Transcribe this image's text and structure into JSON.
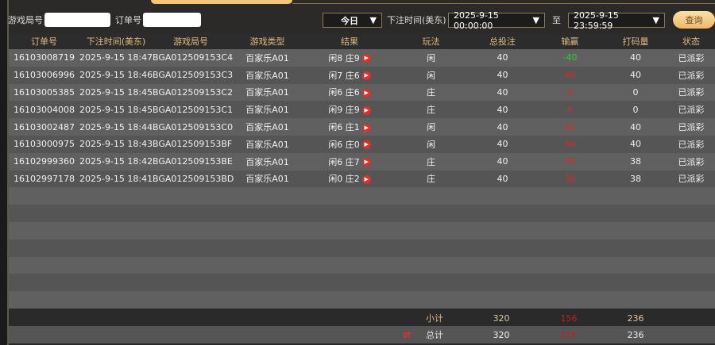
{
  "filters": {
    "round_label": "游戏局号",
    "round_value": "",
    "order_label": "订单号",
    "order_value": "",
    "range_select": "今日",
    "time_label": "下注时间(美东)",
    "start": "2025-9-15 00:00:00",
    "to_label": "至",
    "end": "2025-9-15 23:59:59",
    "query_button": "查询"
  },
  "columns": [
    "订单号",
    "下注时间(美东)",
    "游戏局号",
    "游戏类型",
    "结果",
    "玩法",
    "总投注",
    "输赢",
    "打码量",
    "状态"
  ],
  "rows": [
    {
      "order": "16103008719",
      "time": "2025-9-15 18:47",
      "round": "BGA012509153C4",
      "type": "百家乐A01",
      "result": "闲8 庄9",
      "play": "闲",
      "bet": "40",
      "win": "-40",
      "turnover": "40",
      "status": "已派彩"
    },
    {
      "order": "16103006996",
      "time": "2025-9-15 18:46",
      "round": "BGA012509153C3",
      "type": "百家乐A01",
      "result": "闲7 庄6",
      "play": "闲",
      "bet": "40",
      "win": "40",
      "turnover": "40",
      "status": "已派彩"
    },
    {
      "order": "16103005385",
      "time": "2025-9-15 18:45",
      "round": "BGA012509153C2",
      "type": "百家乐A01",
      "result": "闲6 庄6",
      "play": "庄",
      "bet": "40",
      "win": "0",
      "turnover": "0",
      "status": "已派彩"
    },
    {
      "order": "16103004008",
      "time": "2025-9-15 18:45",
      "round": "BGA012509153C1",
      "type": "百家乐A01",
      "result": "闲9 庄9",
      "play": "庄",
      "bet": "40",
      "win": "0",
      "turnover": "0",
      "status": "已派彩"
    },
    {
      "order": "16103002487",
      "time": "2025-9-15 18:44",
      "round": "BGA012509153C0",
      "type": "百家乐A01",
      "result": "闲6 庄1",
      "play": "闲",
      "bet": "40",
      "win": "40",
      "turnover": "40",
      "status": "已派彩"
    },
    {
      "order": "16103000975",
      "time": "2025-9-15 18:43",
      "round": "BGA012509153BF",
      "type": "百家乐A01",
      "result": "闲6 庄0",
      "play": "闲",
      "bet": "40",
      "win": "40",
      "turnover": "40",
      "status": "已派彩"
    },
    {
      "order": "16102999360",
      "time": "2025-9-15 18:42",
      "round": "BGA012509153BE",
      "type": "百家乐A01",
      "result": "闲6 庄7",
      "play": "庄",
      "bet": "40",
      "win": "38",
      "turnover": "38",
      "status": "已派彩"
    },
    {
      "order": "16102997178",
      "time": "2025-9-15 18:41",
      "round": "BGA012509153BD",
      "type": "百家乐A01",
      "result": "闲0 庄2",
      "play": "庄",
      "bet": "40",
      "win": "38",
      "turnover": "38",
      "status": "已派彩"
    }
  ],
  "subtotal": {
    "label": "小计",
    "bet": "320",
    "win": "156",
    "turnover": "236"
  },
  "total": {
    "label": "总计",
    "bet": "320",
    "win": "156",
    "turnover": "236",
    "icon": "refresh-arrows-icon"
  },
  "colors": {
    "win_positive": "#d42a2a",
    "win_negative": "#2ed12e",
    "header_text": "#e0b880",
    "accent": "#f5c57a"
  }
}
